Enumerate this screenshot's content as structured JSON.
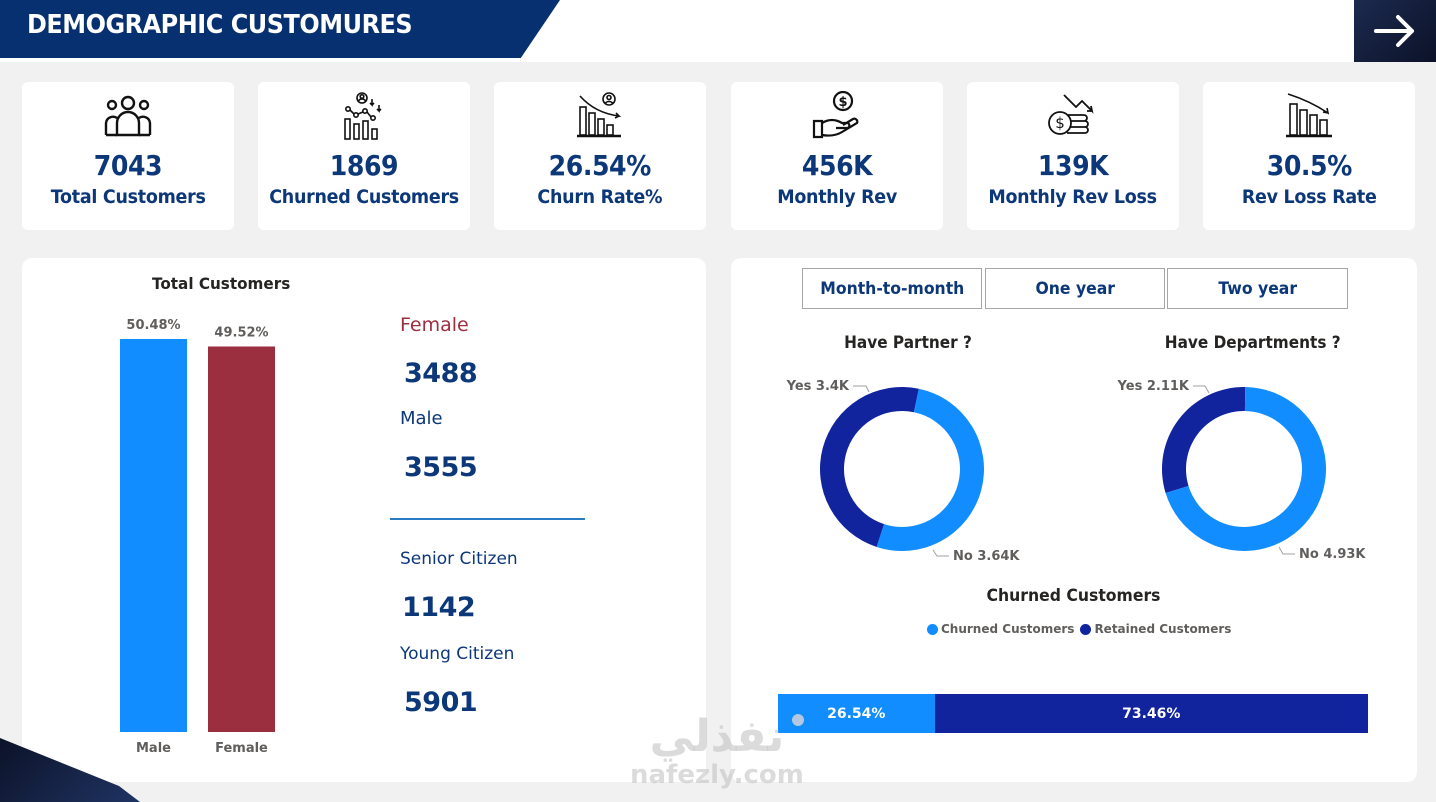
{
  "header": {
    "title": "DEMOGRAPHIC CUSTOMURES",
    "nav_icon": "arrow-right-icon"
  },
  "kpis": [
    {
      "icon": "people-group-icon",
      "value": "7043",
      "label": "Total Customers"
    },
    {
      "icon": "customer-churn-chart-icon",
      "value": "1869",
      "label": "Churned Customers"
    },
    {
      "icon": "declining-bar-chart-user-icon",
      "value": "26.54%",
      "label": "Churn Rate%"
    },
    {
      "icon": "hand-dollar-icon",
      "value": "456K",
      "label": "Monthly Rev"
    },
    {
      "icon": "coins-trend-down-icon",
      "value": "139K",
      "label": "Monthly Rev Loss"
    },
    {
      "icon": "declining-bar-chart-icon",
      "value": "30.5%",
      "label": "Rev Loss Rate"
    }
  ],
  "gender_stats": {
    "female_label": "Female",
    "female_value": "3488",
    "male_label": "Male",
    "male_value": "3555"
  },
  "age_stats": {
    "senior_label": "Senior Citizen",
    "senior_value": "1142",
    "young_label": "Young Citizen",
    "young_value": "5901"
  },
  "contract_slicer": {
    "options": [
      "Month-to-month",
      "One year",
      "Two year"
    ]
  },
  "colors": {
    "primary_navy": "#06306f",
    "kpi_text": "#0c3779",
    "male_blue": "#118dff",
    "female_red": "#9b2f3f",
    "churned_blue": "#118dff",
    "retained_navy": "#12239e"
  },
  "chart_data": [
    {
      "type": "bar",
      "title": "Total Customers",
      "categories": [
        "Male",
        "Female"
      ],
      "values": [
        50.48,
        49.52
      ],
      "data_labels": [
        "50.48%",
        "49.52%"
      ],
      "colors": [
        "#118dff",
        "#9b2f3f"
      ],
      "ylim": [
        0,
        50.48
      ],
      "xlabel": "",
      "ylabel": "",
      "grid": false
    },
    {
      "type": "pie",
      "variant": "donut",
      "title": "Have Partner ?",
      "categories": [
        "Yes",
        "No"
      ],
      "values": [
        3400,
        3640
      ],
      "data_labels": [
        "Yes 3.4K",
        "No 3.64K"
      ],
      "colors": [
        "#12239e",
        "#118dff"
      ]
    },
    {
      "type": "pie",
      "variant": "donut",
      "title": "Have Departments ?",
      "categories": [
        "Yes",
        "No"
      ],
      "values": [
        2110,
        4930
      ],
      "data_labels": [
        "Yes 2.11K",
        "No 4.93K"
      ],
      "colors": [
        "#12239e",
        "#118dff"
      ]
    },
    {
      "type": "bar",
      "variant": "100%-stacked-horizontal",
      "title": "Churned Customers",
      "legend": [
        "Churned Customers",
        "Retained Customers"
      ],
      "legend_position": "top-center",
      "series": [
        {
          "name": "Churned Customers",
          "values": [
            26.54
          ],
          "label": "26.54%",
          "color": "#118dff"
        },
        {
          "name": "Retained Customers",
          "values": [
            73.46
          ],
          "label": "73.46%",
          "color": "#12239e"
        }
      ]
    }
  ],
  "watermark": {
    "arabic": "نفذلي",
    "latin": "nafezly.com"
  }
}
